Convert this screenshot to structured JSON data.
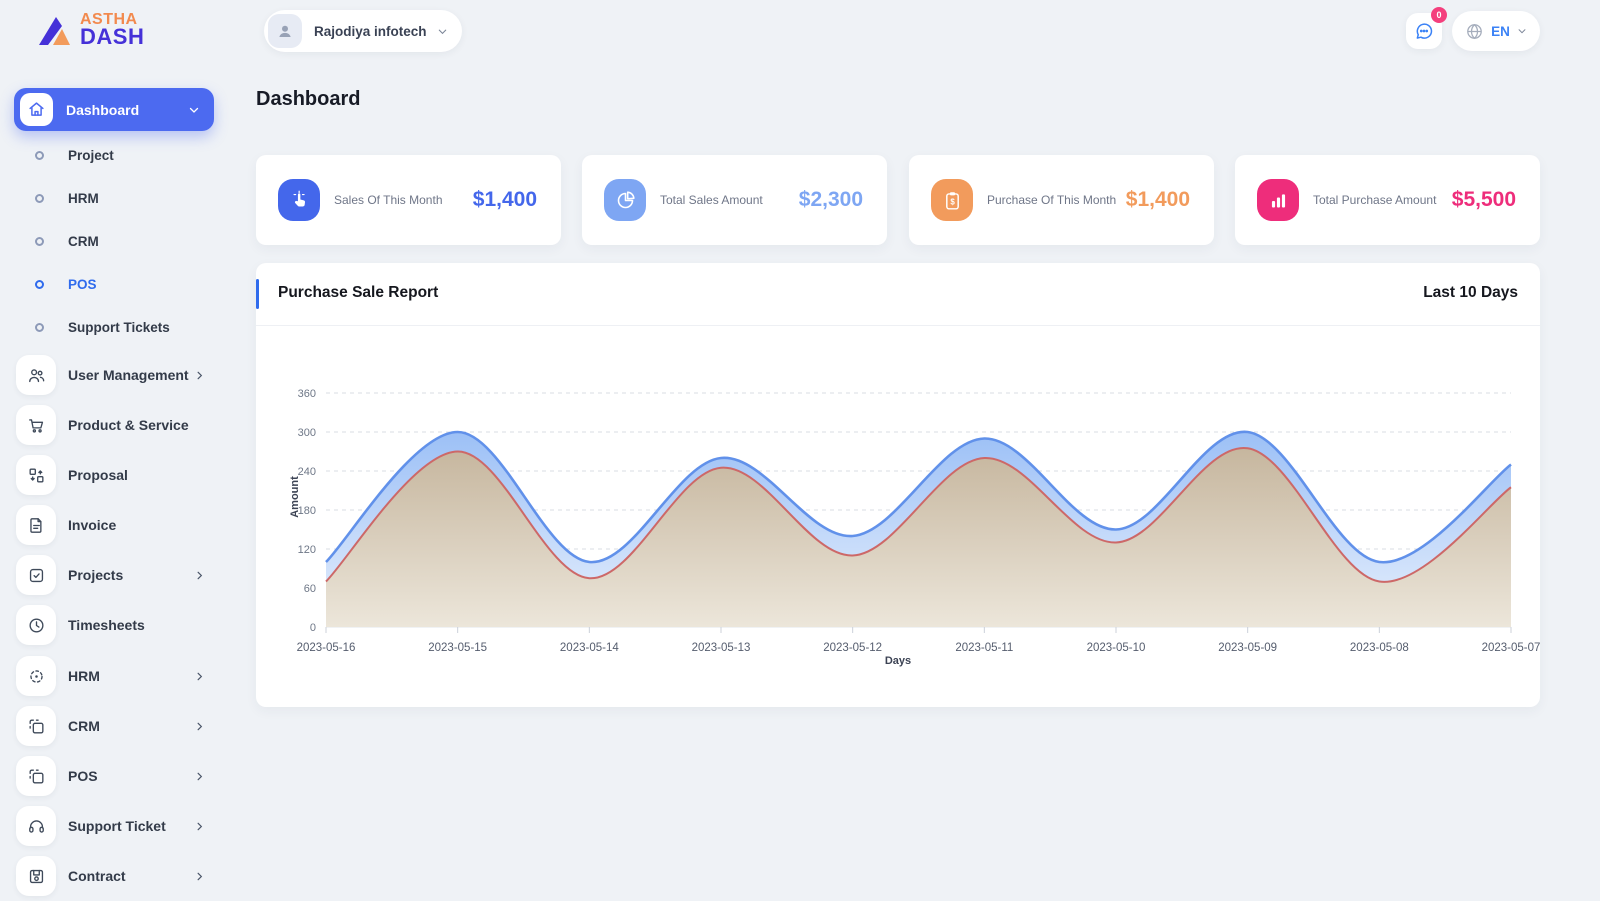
{
  "brand": {
    "line1": "ASTHA",
    "line2": "DASH"
  },
  "topbar": {
    "company": "Rajodiya infotech",
    "messages_badge": "0",
    "language": "EN"
  },
  "page": {
    "title": "Dashboard"
  },
  "sidebar": {
    "active_item": {
      "label": "Dashboard"
    },
    "submenu": [
      {
        "label": "Project"
      },
      {
        "label": "HRM"
      },
      {
        "label": "CRM"
      },
      {
        "label": "POS"
      },
      {
        "label": "Support Tickets"
      }
    ],
    "menu": [
      {
        "label": "User Management"
      },
      {
        "label": "Product & Service"
      },
      {
        "label": "Proposal"
      },
      {
        "label": "Invoice"
      },
      {
        "label": "Projects"
      },
      {
        "label": "Timesheets"
      },
      {
        "label": "HRM"
      },
      {
        "label": "CRM"
      },
      {
        "label": "POS"
      },
      {
        "label": "Support Ticket"
      },
      {
        "label": "Contract"
      }
    ]
  },
  "cards": [
    {
      "label": "Sales Of This Month",
      "value": "$1,400",
      "accent": "#4467eb"
    },
    {
      "label": "Total Sales Amount",
      "value": "$2,300",
      "accent": "#7ea6f3"
    },
    {
      "label": "Purchase Of This Month",
      "value": "$1,400",
      "accent": "#f29b5c"
    },
    {
      "label": "Total Purchase Amount",
      "value": "$5,500",
      "accent": "#ee2d7b"
    }
  ],
  "panel": {
    "title": "Purchase Sale Report",
    "range": "Last 10 Days"
  },
  "chart_data": {
    "type": "area",
    "title": "Purchase Sale Report",
    "x": [
      "2023-05-16",
      "2023-05-15",
      "2023-05-14",
      "2023-05-13",
      "2023-05-12",
      "2023-05-11",
      "2023-05-10",
      "2023-05-09",
      "2023-05-08",
      "2023-05-07"
    ],
    "series": [
      {
        "name": "upper-blue-series",
        "stroke": "#6191ea",
        "fill_top": "#9cc0f6",
        "fill_bottom": "#e7f0fd",
        "values": [
          100,
          300,
          100,
          260,
          140,
          290,
          150,
          300,
          100,
          250
        ]
      },
      {
        "name": "lower-red-series",
        "stroke": "#cd6868",
        "fill_top": "#c6b69e",
        "fill_bottom": "#ece6da",
        "values": [
          70,
          270,
          75,
          245,
          110,
          260,
          130,
          275,
          70,
          215
        ]
      }
    ],
    "xlabel": "Days",
    "ylabel": "Amount",
    "ylim": [
      0,
      390
    ],
    "yticks": [
      0,
      60,
      120,
      180,
      240,
      300,
      360
    ],
    "grid": true,
    "legend": false,
    "curve": "smooth"
  }
}
